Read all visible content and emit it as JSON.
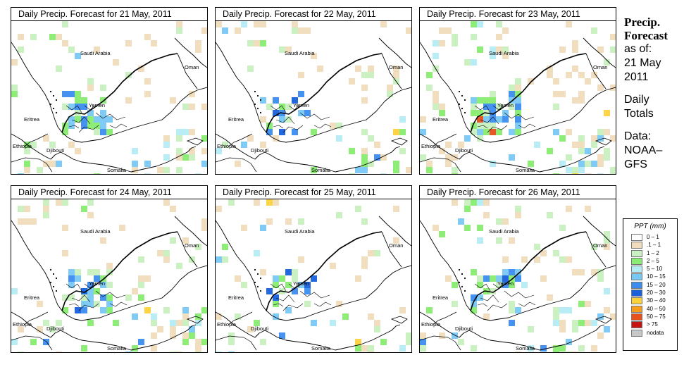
{
  "panels": [
    {
      "title": "Daily Precip. Forecast for  21 May, 2011",
      "seed": 21,
      "intensity": 1.0
    },
    {
      "title": "Daily Precip. Forecast for  22 May, 2011",
      "seed": 22,
      "intensity": 0.9
    },
    {
      "title": "Daily Precip. Forecast for  23 May, 2011",
      "seed": 23,
      "intensity": 1.6
    },
    {
      "title": "Daily Precip. Forecast for  24 May, 2011",
      "seed": 24,
      "intensity": 1.2
    },
    {
      "title": "Daily Precip. Forecast for  25 May, 2011",
      "seed": 25,
      "intensity": 0.8
    },
    {
      "title": "Daily Precip. Forecast for  26 May, 2011",
      "seed": 26,
      "intensity": 1.0
    }
  ],
  "map_labels": {
    "saudi_arabia": "Saudi Arabia",
    "oman": "Oman",
    "yemen": "Yemen",
    "eritrea": "Eritrea",
    "ethiopia": "Ethiopia",
    "djibouti": "Djibouti",
    "somalia": "Somalia"
  },
  "side": {
    "heading_1": "Precip.",
    "heading_2": "Forecast",
    "asof": "as of:",
    "date_1": "21 May",
    "date_2": "2011",
    "daily_1": "Daily",
    "daily_2": "Totals",
    "data_1": "Data:",
    "data_2": "NOAA–",
    "data_3": "GFS"
  },
  "legend": {
    "title": "PPT (mm)",
    "items": [
      {
        "label": "0 – 1",
        "color": "#ffffff"
      },
      {
        "label": ".1 – 1",
        "color": "#f0dcbc"
      },
      {
        "label": "1 – 2",
        "color": "#c8f0c0"
      },
      {
        "label": "2 – 5",
        "color": "#88ec70"
      },
      {
        "label": "5 – 10",
        "color": "#b4ecf4"
      },
      {
        "label": "10 – 15",
        "color": "#78c8f4"
      },
      {
        "label": "15 – 20",
        "color": "#3c8cf0"
      },
      {
        "label": "20 – 30",
        "color": "#1860dc"
      },
      {
        "label": "30 – 40",
        "color": "#fcd23c"
      },
      {
        "label": "40 – 50",
        "color": "#f89c1c"
      },
      {
        "label": "50 – 75",
        "color": "#e8501c"
      },
      {
        "label": "> 75",
        "color": "#c81410"
      },
      {
        "label": "nodata",
        "color": "#c8c8c8"
      }
    ]
  }
}
